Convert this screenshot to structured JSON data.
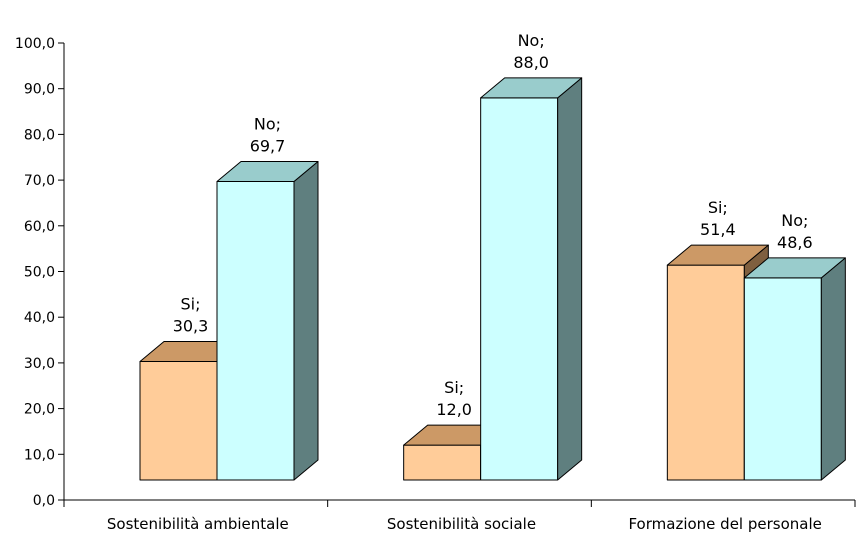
{
  "chart_data": {
    "type": "bar",
    "categories": [
      "Sostenibilità ambientale",
      "Sostenibilità sociale",
      "Formazione del personale"
    ],
    "series": [
      {
        "name": "Si",
        "values": [
          30.3,
          12.0,
          51.4
        ]
      },
      {
        "name": "No",
        "values": [
          69.7,
          88.0,
          48.6
        ]
      }
    ],
    "ylim": [
      0,
      100
    ],
    "yticks": [
      "0,0",
      "10,0",
      "20,0",
      "30,0",
      "40,0",
      "50,0",
      "60,0",
      "70,0",
      "80,0",
      "90,0",
      "100,0"
    ],
    "data_labels": [
      [
        [
          "Si;",
          "30,3"
        ],
        [
          "No;",
          "69,7"
        ]
      ],
      [
        [
          "Si;",
          "12,0"
        ],
        [
          "No;",
          "88,0"
        ]
      ],
      [
        [
          "Si;",
          "51,4"
        ],
        [
          "No;",
          "48,6"
        ]
      ]
    ],
    "grid": false,
    "legend": "none",
    "colors": {
      "Si": {
        "front": "#ffcc99",
        "top": "#cc9966",
        "side": "#7f5f3f"
      },
      "No": {
        "front": "#ccffff",
        "top": "#99cccc",
        "side": "#5f7f7f"
      }
    }
  }
}
